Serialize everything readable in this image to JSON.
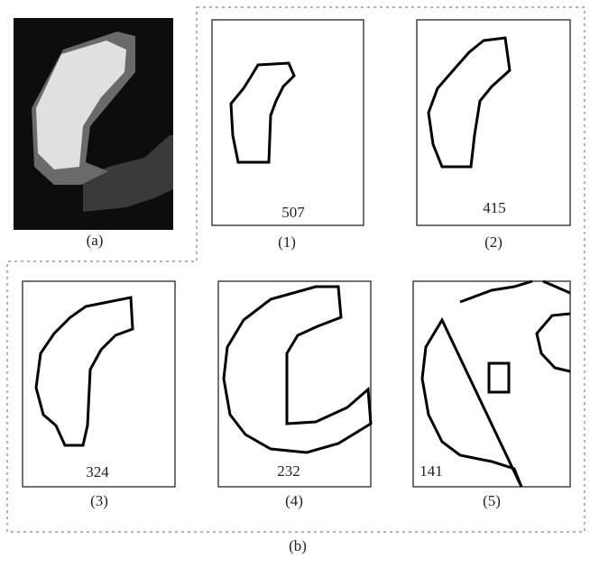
{
  "panel_a": {
    "label": "(a)"
  },
  "panel_b": {
    "label": "(b)",
    "panels": [
      {
        "label": "(1)",
        "value": 507
      },
      {
        "label": "(2)",
        "value": 415
      },
      {
        "label": "(3)",
        "value": 324
      },
      {
        "label": "(4)",
        "value": 232
      },
      {
        "label": "(5)",
        "value": 141
      }
    ]
  }
}
